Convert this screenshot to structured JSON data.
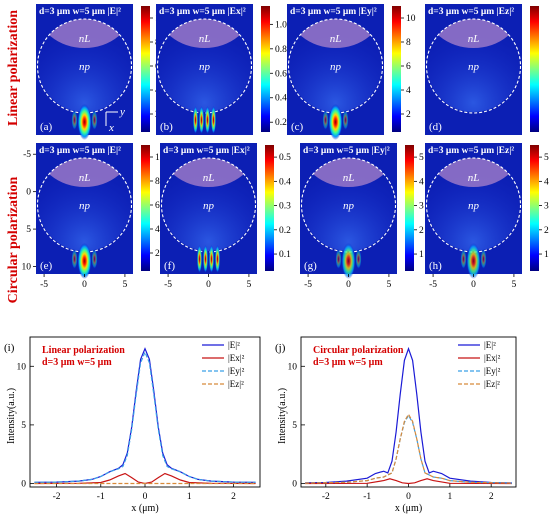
{
  "row_labels": {
    "top": "Linear polarization",
    "bottom": "Circular polarization"
  },
  "map_panels": [
    {
      "letter": "(a)",
      "title": "d=3 μm w=5 μm  |E|²",
      "cb_ticks": [
        "10",
        "8",
        "6",
        "4",
        "2"
      ],
      "cb_max": 11,
      "cb_min": 0.5,
      "focus": "peak",
      "intensity": 1.0
    },
    {
      "letter": "(b)",
      "title": "d=3 μm w=5 μm  |Ex|²",
      "cb_ticks": [
        "1.0",
        "0.8",
        "0.6",
        "0.4",
        "0.2"
      ],
      "cb_max": 1.15,
      "cb_min": 0.12,
      "focus": "split",
      "intensity": 1.0
    },
    {
      "letter": "(c)",
      "title": "d=3 μm w=5 μm  |Ey|²",
      "cb_ticks": [
        "10",
        "8",
        "6",
        "4",
        "2"
      ],
      "cb_max": 11,
      "cb_min": 0.5,
      "focus": "peak",
      "intensity": 1.0
    },
    {
      "letter": "(d)",
      "title": "d=3 μm w=5 μm  |Ez|²",
      "cb_ticks": [],
      "cb_max": 1,
      "cb_min": 0,
      "focus": "none",
      "intensity": 0.0
    },
    {
      "letter": "(e)",
      "title": "d=3 μm w=5 μm  |E|²",
      "cb_ticks": [
        "10",
        "8",
        "6",
        "4",
        "2"
      ],
      "cb_max": 11,
      "cb_min": 0.5,
      "focus": "peak",
      "intensity": 1.0
    },
    {
      "letter": "(f)",
      "title": "d=3 μm w=5 μm  |Ex|²",
      "cb_ticks": [
        "0.5",
        "0.4",
        "0.3",
        "0.2",
        "0.1"
      ],
      "cb_max": 0.55,
      "cb_min": 0.03,
      "focus": "split",
      "intensity": 1.0
    },
    {
      "letter": "(g)",
      "title": "d=3 μm w=5 μm  |Ey|²",
      "cb_ticks": [
        "5",
        "4",
        "3",
        "2",
        "1"
      ],
      "cb_max": 5.5,
      "cb_min": 0.3,
      "focus": "peak",
      "intensity": 0.8
    },
    {
      "letter": "(h)",
      "title": "d=3 μm w=5 μm  |Ez|²",
      "cb_ticks": [
        "5",
        "4",
        "3",
        "2",
        "1"
      ],
      "cb_max": 5.5,
      "cb_min": 0.3,
      "focus": "peak",
      "intensity": 0.8
    }
  ],
  "region_labels": {
    "lens": "nL",
    "particle": "np"
  },
  "axis_glyphs": {
    "y": "y",
    "x": "x"
  },
  "map_axis": {
    "y_ticks": [
      "-5",
      "0",
      "5",
      "10"
    ],
    "y_values": [
      -5,
      0,
      5,
      10
    ],
    "x_ticks": [
      "-5",
      "0",
      "5"
    ],
    "x_values": [
      -5,
      0,
      5
    ]
  },
  "chart_data": [
    {
      "type": "line",
      "letter": "(i)",
      "annotation": [
        "Linear polarization",
        "d=3 μm w=5 μm"
      ],
      "xlabel": "x (μm)",
      "ylabel": "Intensity(a.u.)",
      "xlim": [
        -2.6,
        2.6
      ],
      "ylim": [
        -0.3,
        12.5
      ],
      "x_ticks": [
        -2,
        -1,
        0,
        1,
        2
      ],
      "y_ticks": [
        0,
        5,
        10
      ],
      "series": [
        {
          "name": "|E|²",
          "color": "#1a1ad6",
          "dash": "",
          "x": [
            -2.5,
            -2,
            -1.5,
            -1.2,
            -1,
            -0.8,
            -0.6,
            -0.5,
            -0.4,
            -0.3,
            -0.2,
            -0.1,
            0,
            0.1,
            0.2,
            0.3,
            0.4,
            0.5,
            0.6,
            0.8,
            1,
            1.2,
            1.5,
            2,
            2.5
          ],
          "y": [
            0.1,
            0.12,
            0.2,
            0.35,
            0.6,
            1.0,
            1.3,
            1.6,
            2.6,
            4.8,
            7.9,
            10.6,
            11.5,
            10.6,
            7.9,
            4.8,
            2.6,
            1.6,
            1.3,
            1.0,
            0.6,
            0.35,
            0.2,
            0.12,
            0.1
          ]
        },
        {
          "name": "|Ex|²",
          "color": "#c81414",
          "dash": "",
          "x": [
            -2.5,
            -1.5,
            -1,
            -0.8,
            -0.6,
            -0.45,
            -0.3,
            -0.15,
            0,
            0.15,
            0.3,
            0.45,
            0.6,
            0.8,
            1,
            1.5,
            2.5
          ],
          "y": [
            0,
            0.02,
            0.08,
            0.3,
            0.65,
            0.85,
            0.5,
            0.12,
            0,
            0.12,
            0.5,
            0.85,
            0.65,
            0.3,
            0.08,
            0.02,
            0
          ]
        },
        {
          "name": "|Ey|²",
          "color": "#3aa0e6",
          "dash": "4,2",
          "x": [
            -2.5,
            -2,
            -1.5,
            -1.2,
            -1,
            -0.8,
            -0.6,
            -0.5,
            -0.4,
            -0.3,
            -0.2,
            -0.1,
            0,
            0.1,
            0.2,
            0.3,
            0.4,
            0.5,
            0.6,
            0.8,
            1,
            1.2,
            1.5,
            2,
            2.5
          ],
          "y": [
            0.1,
            0.12,
            0.2,
            0.35,
            0.6,
            1.0,
            1.25,
            1.45,
            2.4,
            4.6,
            7.6,
            10.3,
            11.2,
            10.3,
            7.6,
            4.6,
            2.4,
            1.45,
            1.25,
            1.0,
            0.6,
            0.35,
            0.2,
            0.12,
            0.1
          ]
        },
        {
          "name": "|Ez|²",
          "color": "#d88a3a",
          "dash": "4,2",
          "x": [
            -2.5,
            2.5
          ],
          "y": [
            0,
            0
          ]
        }
      ],
      "legend_position": "top-right"
    },
    {
      "type": "line",
      "letter": "(j)",
      "annotation": [
        "Circular polarization",
        "d=3 μm w=5 μm"
      ],
      "xlabel": "x (μm)",
      "ylabel": "Intensity(a.u.)",
      "xlim": [
        -2.6,
        2.6
      ],
      "ylim": [
        -0.3,
        12.5
      ],
      "x_ticks": [
        -2,
        -1,
        0,
        1,
        2
      ],
      "y_ticks": [
        0,
        5,
        10
      ],
      "series": [
        {
          "name": "|E|²",
          "color": "#1a1ad6",
          "dash": "",
          "x": [
            -2.5,
            -2,
            -1.5,
            -1,
            -0.8,
            -0.6,
            -0.5,
            -0.4,
            -0.3,
            -0.2,
            -0.1,
            0,
            0.1,
            0.2,
            0.3,
            0.4,
            0.5,
            0.6,
            0.8,
            1,
            1.5,
            2,
            2.5
          ],
          "y": [
            0.05,
            0.08,
            0.2,
            0.45,
            0.85,
            1.05,
            0.9,
            1.9,
            4.4,
            7.6,
            10.5,
            11.5,
            10.5,
            7.6,
            4.4,
            1.9,
            0.9,
            1.05,
            0.85,
            0.45,
            0.2,
            0.08,
            0.05
          ]
        },
        {
          "name": "|Ex|²",
          "color": "#c81414",
          "dash": "",
          "x": [
            -2.5,
            -1,
            -0.6,
            -0.45,
            -0.3,
            -0.15,
            0,
            0.15,
            0.3,
            0.45,
            0.6,
            1,
            2.5
          ],
          "y": [
            0,
            0.02,
            0.25,
            0.4,
            0.25,
            0.06,
            0,
            0.06,
            0.25,
            0.4,
            0.25,
            0.02,
            0
          ]
        },
        {
          "name": "|Ey|²",
          "color": "#3aa0e6",
          "dash": "4,2",
          "x": [
            -2.5,
            -1.5,
            -1,
            -0.8,
            -0.6,
            -0.4,
            -0.3,
            -0.2,
            -0.1,
            0,
            0.1,
            0.2,
            0.3,
            0.4,
            0.6,
            0.8,
            1,
            1.5,
            2.5
          ],
          "y": [
            0.03,
            0.1,
            0.25,
            0.45,
            0.55,
            0.9,
            2.1,
            3.8,
            5.2,
            5.8,
            5.2,
            3.8,
            2.1,
            0.9,
            0.55,
            0.45,
            0.25,
            0.1,
            0.03
          ]
        },
        {
          "name": "|Ez|²",
          "color": "#d88a3a",
          "dash": "4,2",
          "x": [
            -2.5,
            -1.5,
            -1,
            -0.8,
            -0.6,
            -0.4,
            -0.3,
            -0.2,
            -0.1,
            0,
            0.1,
            0.2,
            0.3,
            0.4,
            0.6,
            0.8,
            1,
            1.5,
            2.5
          ],
          "y": [
            0.03,
            0.1,
            0.25,
            0.45,
            0.55,
            0.9,
            2.1,
            3.8,
            5.3,
            5.9,
            5.3,
            3.8,
            2.1,
            0.9,
            0.55,
            0.45,
            0.25,
            0.1,
            0.03
          ]
        }
      ],
      "legend_position": "top-right"
    }
  ]
}
